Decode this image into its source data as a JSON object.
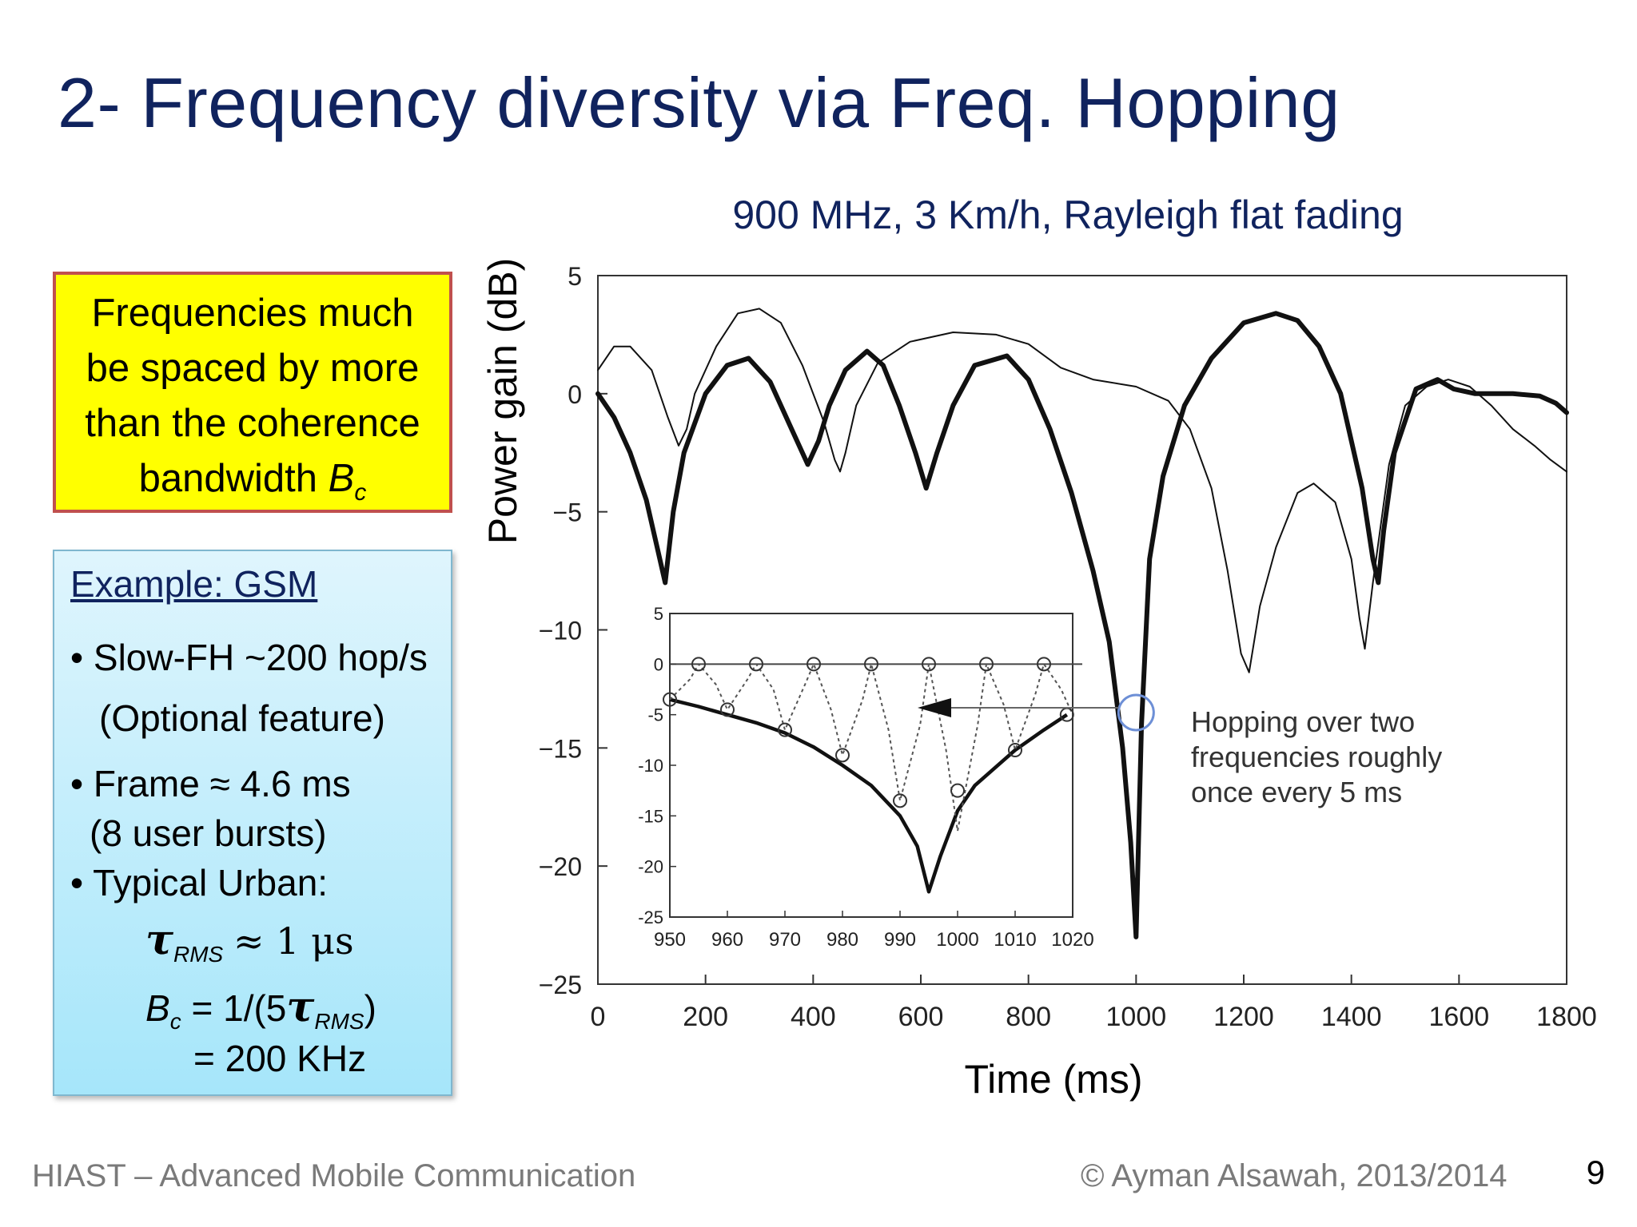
{
  "slide": {
    "title": "2- Frequency diversity via Freq. Hopping",
    "page_number": "9"
  },
  "yellow_box": {
    "line1": "Frequencies much",
    "line2": "be spaced by more",
    "line3": "than the coherence",
    "line4_prefix": "bandwidth ",
    "symbol_B": "B",
    "symbol_sub": "c"
  },
  "example_box": {
    "title": "Example: GSM",
    "bullet1": "Slow-FH ~200 hop/s",
    "bullet1_note": "(Optional feature)",
    "bullet2": "Frame ≈ 4.6 ms",
    "bullet2_note": "(8 user bursts)",
    "bullet3": "Typical Urban:",
    "tau_symbol": "τ",
    "tau_sub": "RMS",
    "tau_value": "≈ 1 μs",
    "bc_symbol": "B",
    "bc_sub": "c",
    "bc_formula_prefix": "= 1/(5",
    "bc_formula_tau": "τ",
    "bc_formula_sub": "RMS",
    "bc_formula_suffix": ")",
    "bc_result": "= 200 KHz",
    "bullet_char": "•"
  },
  "footer": {
    "left": "HIAST  – Advanced Mobile Communication",
    "right": "© Ayman Alsawah, 2013/2014"
  },
  "chart_data": [
    {
      "type": "line",
      "title": "900 MHz, 3 Km/h, Rayleigh flat fading",
      "xlabel": "Time (ms)",
      "ylabel": "Power gain (dB)",
      "xlim": [
        0,
        1800
      ],
      "ylim": [
        -25,
        5
      ],
      "x_ticks": [
        0,
        200,
        400,
        600,
        800,
        1000,
        1200,
        1400,
        1600,
        1800
      ],
      "y_ticks": [
        5,
        0,
        -5,
        -10,
        -15,
        -20,
        -25
      ],
      "x_tick_labels": [
        "0",
        "200",
        "400",
        "600",
        "800",
        "1000",
        "1200",
        "1400",
        "1600",
        "1800"
      ],
      "y_tick_labels": [
        "5",
        "0",
        "−5",
        "−10",
        "−15",
        "−20",
        "−25"
      ],
      "series": [
        {
          "style": "thick",
          "x": [
            0,
            30,
            60,
            90,
            110,
            125,
            140,
            160,
            200,
            240,
            280,
            320,
            360,
            390,
            410,
            430,
            460,
            500,
            530,
            560,
            590,
            610,
            630,
            660,
            700,
            760,
            800,
            840,
            880,
            920,
            950,
            975,
            990,
            1000,
            1010,
            1025,
            1050,
            1090,
            1140,
            1200,
            1260,
            1300,
            1340,
            1380,
            1420,
            1440,
            1450,
            1460,
            1480,
            1520,
            1560,
            1590,
            1630,
            1700,
            1750,
            1780,
            1800
          ],
          "y": [
            0,
            -1,
            -2.5,
            -4.5,
            -6.5,
            -8,
            -5,
            -2.5,
            0,
            1.2,
            1.5,
            0.5,
            -1.5,
            -3,
            -2,
            -0.5,
            1,
            1.8,
            1.2,
            -0.5,
            -2.5,
            -4,
            -2.5,
            -0.5,
            1.2,
            1.6,
            0.6,
            -1.5,
            -4.2,
            -7.5,
            -10.5,
            -15,
            -19,
            -23,
            -14,
            -7,
            -3.5,
            -0.5,
            1.5,
            3,
            3.4,
            3.1,
            2,
            0,
            -4,
            -7,
            -8,
            -5.8,
            -2.5,
            0.2,
            0.6,
            0.2,
            0,
            0,
            -0.1,
            -0.4,
            -0.8
          ]
        },
        {
          "style": "thin",
          "x": [
            0,
            30,
            60,
            100,
            130,
            150,
            165,
            180,
            220,
            260,
            300,
            340,
            380,
            420,
            440,
            450,
            460,
            480,
            520,
            580,
            660,
            740,
            800,
            860,
            920,
            1000,
            1060,
            1100,
            1140,
            1170,
            1195,
            1210,
            1230,
            1260,
            1300,
            1330,
            1370,
            1400,
            1415,
            1425,
            1440,
            1470,
            1500,
            1540,
            1580,
            1620,
            1660,
            1700,
            1740,
            1770,
            1800
          ],
          "y": [
            1,
            2,
            2,
            1,
            -1,
            -2.2,
            -1.5,
            0,
            2,
            3.4,
            3.6,
            3,
            1.2,
            -1.2,
            -2.8,
            -3.3,
            -2.5,
            -0.5,
            1.3,
            2.2,
            2.6,
            2.5,
            2.1,
            1.1,
            0.6,
            0.3,
            -0.3,
            -1.5,
            -4,
            -7.5,
            -11,
            -11.8,
            -9,
            -6.5,
            -4.2,
            -3.8,
            -4.6,
            -7,
            -9.5,
            -10.8,
            -8,
            -3,
            -0.5,
            0.3,
            0.6,
            0.3,
            -0.5,
            -1.5,
            -2.2,
            -2.8,
            -3.3
          ]
        },
        {
          "style": "inset-pointer",
          "x": [
            1000
          ],
          "y": [
            -13.5
          ]
        }
      ],
      "annotation": {
        "line1": "Hopping over two",
        "line2": "frequencies roughly",
        "line3": "once every 5 ms"
      }
    },
    {
      "type": "line",
      "title": "",
      "xlim": [
        950,
        1020
      ],
      "ylim": [
        -25,
        5
      ],
      "x_ticks": [
        950,
        960,
        970,
        980,
        990,
        1000,
        1010,
        1020
      ],
      "y_ticks": [
        5,
        0,
        -5,
        -10,
        -15,
        -20,
        -25
      ],
      "x_tick_labels": [
        "950",
        "960",
        "970",
        "980",
        "990",
        "1000",
        "1010",
        "1020"
      ],
      "y_tick_labels": [
        "5",
        "0",
        "-5",
        "-10",
        "-15",
        "-20",
        "-25"
      ],
      "series": [
        {
          "style": "solid",
          "x": [
            950,
            955,
            960,
            965,
            970,
            975,
            980,
            985,
            990,
            993,
            995,
            997,
            999,
            1000,
            1003,
            1006,
            1010,
            1015,
            1019
          ],
          "y": [
            -3.5,
            -4.2,
            -5,
            -5.8,
            -6.8,
            -8.2,
            -10,
            -12,
            -15,
            -18,
            -22.5,
            -19,
            -16,
            -14.5,
            -12,
            -10.5,
            -8.5,
            -6.5,
            -5
          ]
        },
        {
          "style": "dotted",
          "x": [
            950,
            953.5,
            955,
            958,
            960,
            963.5,
            965,
            968,
            970,
            973.5,
            975,
            978,
            980,
            983.5,
            985,
            988,
            990,
            993.5,
            995,
            998,
            1000,
            1003.5,
            1005,
            1008,
            1010,
            1013.5,
            1015,
            1018,
            1020
          ],
          "y": [
            -3.5,
            -1.5,
            0,
            -2,
            -4.5,
            -1.5,
            0,
            -2.5,
            -6.5,
            -2,
            0,
            -4.5,
            -9,
            -3.5,
            0,
            -6.5,
            -13.5,
            -6,
            0,
            -8.5,
            -16.5,
            -6,
            0,
            -4,
            -8.5,
            -3,
            0,
            -2.5,
            -5
          ]
        },
        {
          "style": "markers",
          "x": [
            950,
            955,
            960,
            965,
            970,
            975,
            980,
            985,
            990,
            995,
            1000,
            1005,
            1010,
            1015,
            1019
          ],
          "y": [
            -3.5,
            0,
            -4.5,
            0,
            -6.5,
            0,
            -9,
            0,
            -13.5,
            0,
            -12.5,
            0,
            -8.5,
            0,
            -5
          ]
        }
      ]
    }
  ]
}
